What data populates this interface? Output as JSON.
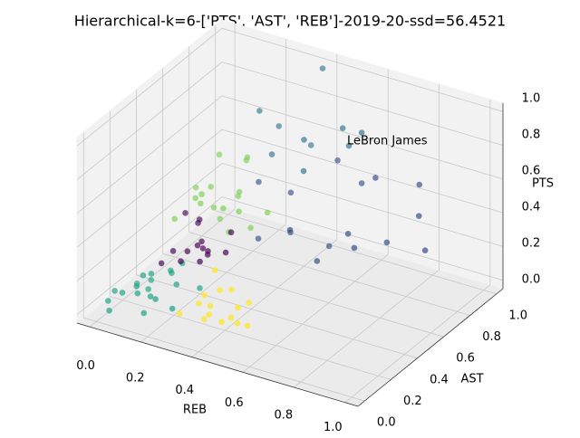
{
  "chart_data": {
    "type": "scatter3d",
    "title": "Hierarchical-k=6-['PTS', 'AST', 'REB']-2019-20-ssd=56.4521",
    "xlabel": "REB",
    "ylabel": "AST",
    "zlabel": "PTS",
    "xlim": [
      -0.05,
      1.05
    ],
    "ylim": [
      -0.05,
      1.05
    ],
    "zlim": [
      -0.05,
      1.05
    ],
    "xticks": [
      {
        "value": 0,
        "label": "0.0"
      },
      0.2,
      0.4,
      0.6,
      0.8,
      {
        "value": 1,
        "label": "1.0"
      }
    ],
    "yticks": [
      {
        "value": 0,
        "label": "0.0"
      },
      0.2,
      0.4,
      0.6,
      0.8,
      {
        "value": 1,
        "label": "1.0"
      }
    ],
    "zticks": [
      {
        "value": 0,
        "label": "0.0"
      },
      0.2,
      0.4,
      0.6,
      0.8,
      {
        "value": 1,
        "label": "1.0"
      }
    ],
    "grid": true,
    "series": [
      {
        "color": "#21a585",
        "x": [
          0.02,
          0.05,
          0.08,
          0.1,
          0.12,
          0.15,
          0.03,
          0.06,
          0.09,
          0.18,
          0.2,
          0.04,
          0.07,
          0.11,
          0.14,
          0.16,
          0.01,
          0.13,
          0.22,
          0.25
        ],
        "y": [
          0.05,
          0.1,
          0.15,
          0.2,
          0.08,
          0.12,
          0.25,
          0.3,
          0.18,
          0.1,
          0.22,
          0.02,
          0.28,
          0.35,
          0.3,
          0.05,
          0.12,
          0.4,
          0.15,
          0.3
        ],
        "z": [
          0.05,
          0.08,
          0.1,
          0.06,
          0.12,
          0.09,
          0.03,
          0.07,
          0.15,
          0.1,
          0.12,
          0.02,
          0.05,
          0.08,
          0.11,
          0.04,
          0.06,
          0.1,
          0.03,
          0.07
        ]
      },
      {
        "color": "#fde725",
        "x": [
          0.3,
          0.35,
          0.4,
          0.45,
          0.38,
          0.42,
          0.5,
          0.33,
          0.36,
          0.48,
          0.55,
          0.44,
          0.4,
          0.52,
          0.32
        ],
        "y": [
          0.05,
          0.1,
          0.08,
          0.15,
          0.2,
          0.05,
          0.1,
          0.18,
          0.12,
          0.02,
          0.08,
          0.22,
          0.25,
          0.15,
          0.28
        ],
        "z": [
          0.1,
          0.15,
          0.12,
          0.08,
          0.18,
          0.2,
          0.1,
          0.14,
          0.05,
          0.15,
          0.12,
          0.09,
          0.16,
          0.2,
          0.22
        ]
      },
      {
        "color": "#440154",
        "x": [
          0.1,
          0.12,
          0.15,
          0.18,
          0.2,
          0.22,
          0.14,
          0.16,
          0.25,
          0.28,
          0.12,
          0.19,
          0.3,
          0.08,
          0.24
        ],
        "y": [
          0.3,
          0.35,
          0.4,
          0.45,
          0.38,
          0.42,
          0.5,
          0.33,
          0.36,
          0.48,
          0.55,
          0.44,
          0.4,
          0.52,
          0.32
        ],
        "z": [
          0.15,
          0.2,
          0.18,
          0.22,
          0.25,
          0.2,
          0.28,
          0.17,
          0.23,
          0.3,
          0.26,
          0.19,
          0.24,
          0.3,
          0.21
        ]
      },
      {
        "color": "#7ad151",
        "x": [
          0.1,
          0.15,
          0.2,
          0.25,
          0.18,
          0.22,
          0.3,
          0.12,
          0.16,
          0.28,
          0.35,
          0.14,
          0.2,
          0.32,
          0.24,
          0.08,
          0.26,
          0.18
        ],
        "y": [
          0.4,
          0.5,
          0.55,
          0.6,
          0.45,
          0.65,
          0.5,
          0.7,
          0.58,
          0.42,
          0.62,
          0.48,
          0.75,
          0.55,
          0.68,
          0.6,
          0.5,
          0.52
        ],
        "z": [
          0.35,
          0.4,
          0.3,
          0.45,
          0.5,
          0.38,
          0.42,
          0.55,
          0.33,
          0.48,
          0.36,
          0.44,
          0.52,
          0.3,
          0.6,
          0.4,
          0.28,
          0.5
        ]
      },
      {
        "color": "#3b528b",
        "x": [
          0.35,
          0.45,
          0.55,
          0.65,
          0.75,
          0.85,
          0.5,
          0.6,
          0.7,
          0.4,
          0.8,
          0.9,
          0.3,
          0.58,
          0.68,
          0.48
        ],
        "y": [
          0.55,
          0.6,
          0.7,
          0.65,
          0.75,
          0.8,
          0.5,
          0.85,
          0.6,
          0.7,
          0.9,
          0.75,
          0.65,
          0.55,
          0.8,
          0.9
        ],
        "z": [
          0.25,
          0.3,
          0.2,
          0.35,
          0.28,
          0.45,
          0.4,
          0.5,
          0.32,
          0.45,
          0.55,
          0.3,
          0.5,
          0.22,
          0.6,
          0.55
        ]
      },
      {
        "color": "#2c728e",
        "x": [
          0.3,
          0.4,
          0.5,
          0.55,
          0.25,
          0.35,
          0.45,
          0.6,
          0.2,
          0.38
        ],
        "y": [
          0.75,
          0.8,
          0.9,
          0.85,
          0.9,
          0.95,
          0.7,
          0.85,
          0.85,
          0.98
        ],
        "z": [
          0.6,
          0.7,
          0.75,
          0.7,
          0.65,
          0.55,
          0.6,
          0.8,
          0.75,
          1.0
        ]
      }
    ],
    "annotations": [
      {
        "text": "LeBron James",
        "x": 0.55,
        "y": 0.85,
        "z": 0.7
      }
    ]
  }
}
